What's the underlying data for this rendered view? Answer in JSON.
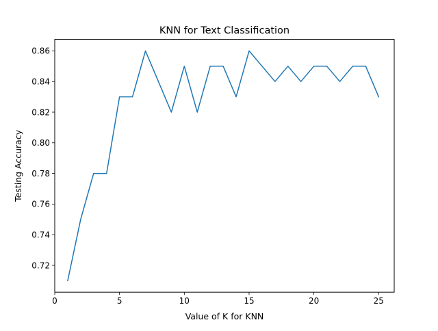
{
  "chart_data": {
    "type": "line",
    "title": "KNN for Text Classification",
    "xlabel": "Value of K for KNN",
    "ylabel": "Testing Accuracy",
    "xlim": [
      0,
      26.2
    ],
    "ylim": [
      0.7025,
      0.8675
    ],
    "xticks": [
      0,
      5,
      10,
      15,
      20,
      25
    ],
    "xtick_labels": [
      "0",
      "5",
      "10",
      "15",
      "20",
      "25"
    ],
    "yticks": [
      0.72,
      0.74,
      0.76,
      0.78,
      0.8,
      0.82,
      0.84,
      0.86
    ],
    "ytick_labels": [
      "0.72",
      "0.74",
      "0.76",
      "0.78",
      "0.80",
      "0.82",
      "0.84",
      "0.86"
    ],
    "grid": false,
    "legend": "none",
    "series": [
      {
        "color": "#1f77b4",
        "x": [
          1,
          2,
          3,
          4,
          5,
          6,
          7,
          8,
          9,
          10,
          11,
          12,
          13,
          14,
          15,
          16,
          17,
          18,
          19,
          20,
          21,
          22,
          23,
          24,
          25
        ],
        "y": [
          0.71,
          0.75,
          0.78,
          0.78,
          0.83,
          0.83,
          0.86,
          0.84,
          0.82,
          0.85,
          0.82,
          0.85,
          0.85,
          0.83,
          0.86,
          0.85,
          0.84,
          0.85,
          0.84,
          0.85,
          0.85,
          0.84,
          0.85,
          0.85,
          0.83
        ]
      }
    ]
  }
}
